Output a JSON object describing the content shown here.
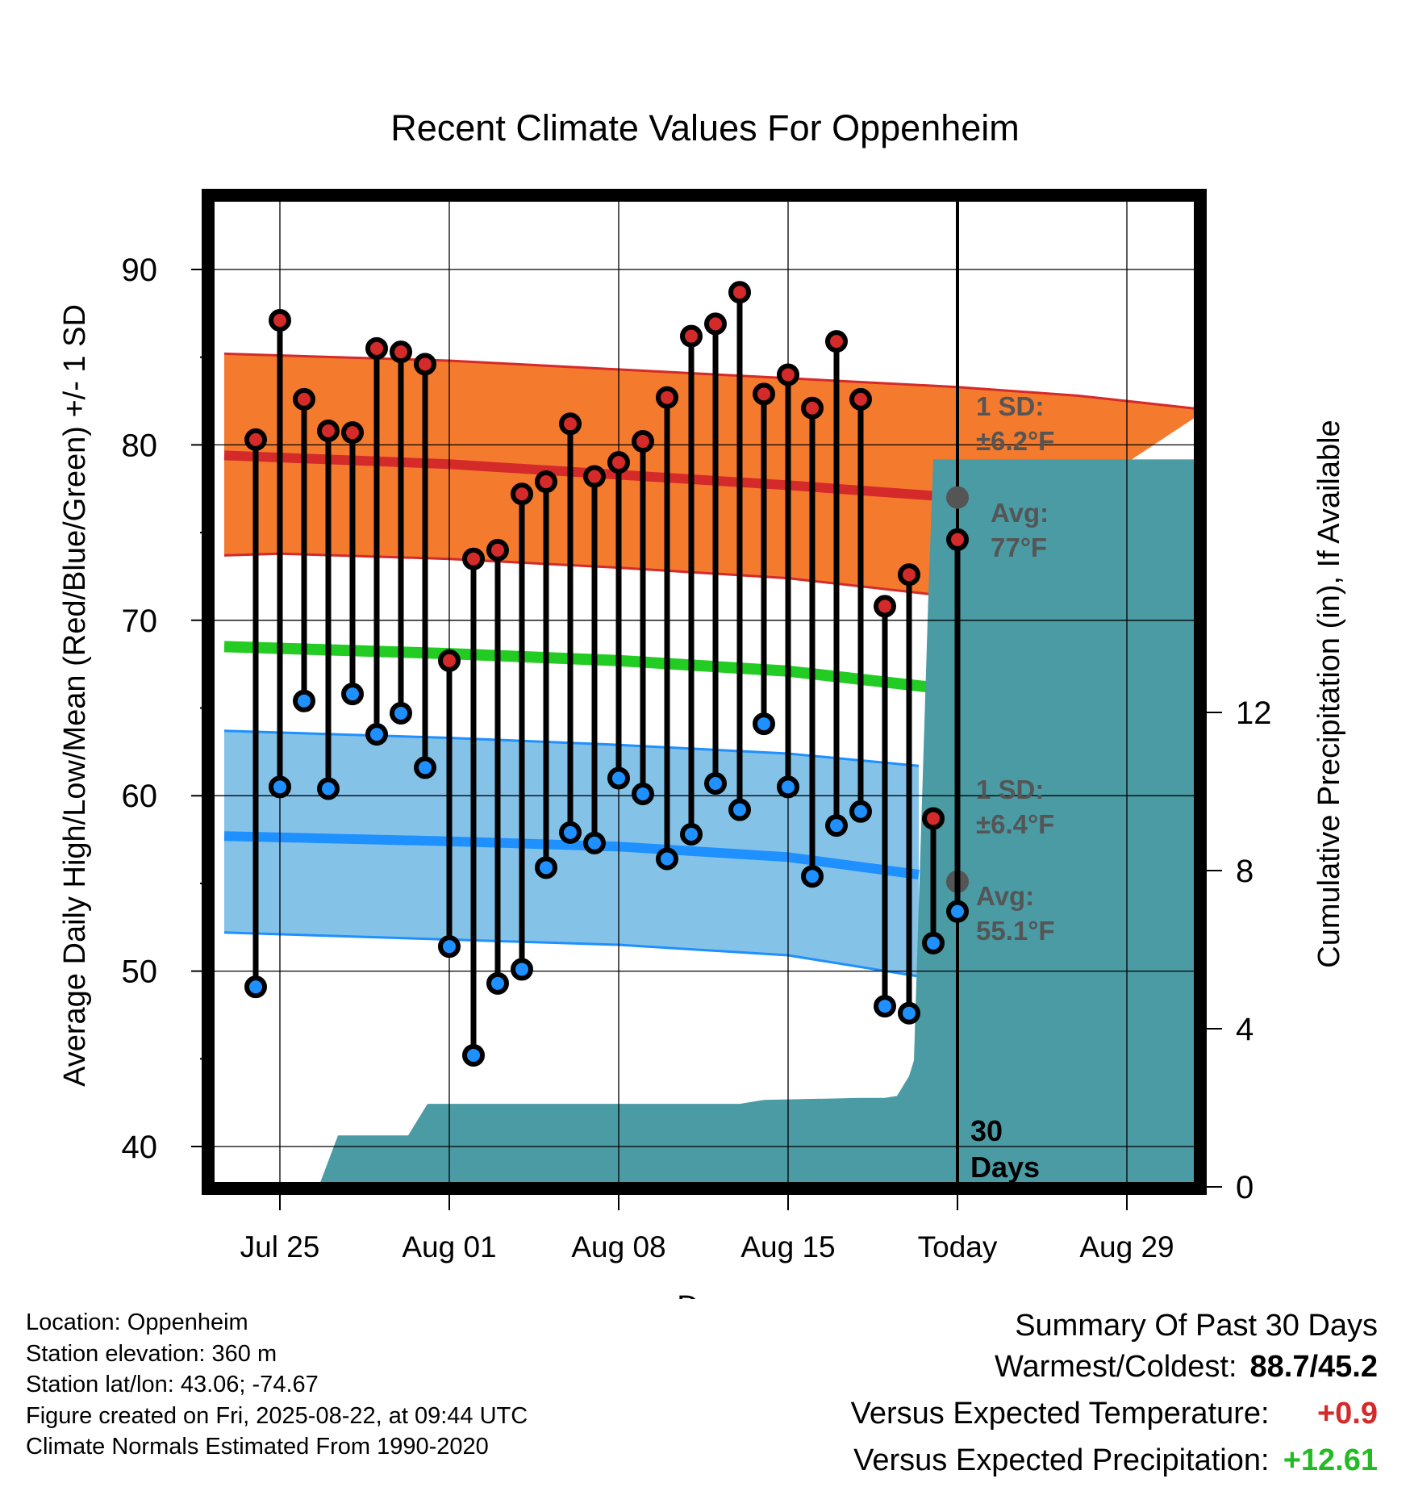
{
  "chart_data": {
    "type": "line",
    "title": "Recent Climate Values For Oppenheim",
    "xlabel": "Day",
    "ylabel": "Average Daily High/Low/Mean (Red/Blue/Green) +/- 1 SD",
    "y2label": "Cumulative Precipitation (in), If Available",
    "ylim": [
      37.5,
      94
    ],
    "y2lim": [
      0,
      21
    ],
    "yticks": [
      40,
      50,
      60,
      70,
      80,
      90
    ],
    "y2ticks": [
      0,
      4,
      8,
      12
    ],
    "x_range_days": [
      -29.6,
      10.2
    ],
    "xticks": [
      {
        "day": -28,
        "label": "Jul 25"
      },
      {
        "day": -21,
        "label": "Aug 01"
      },
      {
        "day": -14,
        "label": "Aug 08"
      },
      {
        "day": -7,
        "label": "Aug 15"
      },
      {
        "day": 0,
        "label": "Today"
      },
      {
        "day": 7,
        "label": "Aug 29"
      }
    ],
    "today_marker": "30\nDays",
    "grid": true,
    "colors": {
      "high_band": "#f47a2e",
      "high_mean": "#d42a2a",
      "low_band": "#85c2e8",
      "low_mean": "#1e90ff",
      "mean_line": "#22cc22",
      "precip": "#4a9ba4",
      "high_marker": "#d42a2a",
      "low_marker": "#1e90ff",
      "avg_marker": "#555555",
      "annotation": "#555555"
    },
    "normals": {
      "high_mean": [
        [
          -30.3,
          79.4
        ],
        [
          -21,
          78.9
        ],
        [
          -14,
          78.3
        ],
        [
          -7,
          77.7
        ],
        [
          0,
          77.0
        ],
        [
          5,
          76.4
        ],
        [
          10.3,
          75.6
        ]
      ],
      "high_upper": [
        [
          -30.3,
          85.2
        ],
        [
          -21,
          84.8
        ],
        [
          -14,
          84.3
        ],
        [
          -7,
          83.8
        ],
        [
          0,
          83.3
        ],
        [
          5,
          82.8
        ],
        [
          10.3,
          82.0
        ]
      ],
      "high_lower": [
        [
          -30.3,
          73.7
        ],
        [
          -28,
          73.8
        ],
        [
          -21,
          73.5
        ],
        [
          -14,
          73.0
        ],
        [
          -7,
          72.4
        ],
        [
          -1.2,
          71.5
        ]
      ],
      "low_mean": [
        [
          -30.3,
          57.7
        ],
        [
          -21,
          57.4
        ],
        [
          -14,
          57.1
        ],
        [
          -7,
          56.5
        ],
        [
          -1.6,
          55.5
        ]
      ],
      "low_upper": [
        [
          -30.3,
          63.7
        ],
        [
          -21,
          63.3
        ],
        [
          -14,
          62.9
        ],
        [
          -7,
          62.4
        ],
        [
          -1.6,
          61.7
        ]
      ],
      "low_lower": [
        [
          -30.3,
          52.2
        ],
        [
          -21,
          51.8
        ],
        [
          -14,
          51.5
        ],
        [
          -7,
          50.9
        ],
        [
          -1.6,
          49.7
        ]
      ],
      "mean": [
        [
          -30.3,
          68.5
        ],
        [
          -21,
          68.1
        ],
        [
          -14,
          67.7
        ],
        [
          -7,
          67.1
        ],
        [
          -1.2,
          66.2
        ]
      ]
    },
    "highs": [
      {
        "day": -29,
        "value": 80.3
      },
      {
        "day": -28,
        "value": 87.1
      },
      {
        "day": -27,
        "value": 82.6
      },
      {
        "day": -26,
        "value": 80.8
      },
      {
        "day": -25,
        "value": 80.7
      },
      {
        "day": -24,
        "value": 85.5
      },
      {
        "day": -23,
        "value": 85.3
      },
      {
        "day": -22,
        "value": 84.6
      },
      {
        "day": -21,
        "value": 67.7
      },
      {
        "day": -20,
        "value": 73.5
      },
      {
        "day": -19,
        "value": 74.0
      },
      {
        "day": -18,
        "value": 77.2
      },
      {
        "day": -17,
        "value": 77.9
      },
      {
        "day": -16,
        "value": 81.2
      },
      {
        "day": -15,
        "value": 78.2
      },
      {
        "day": -14,
        "value": 79.0
      },
      {
        "day": -13,
        "value": 80.2
      },
      {
        "day": -12,
        "value": 82.7
      },
      {
        "day": -11,
        "value": 86.2
      },
      {
        "day": -10,
        "value": 86.9
      },
      {
        "day": -9,
        "value": 88.7
      },
      {
        "day": -8,
        "value": 82.9
      },
      {
        "day": -7,
        "value": 84.0
      },
      {
        "day": -6,
        "value": 82.1
      },
      {
        "day": -5,
        "value": 85.9
      },
      {
        "day": -4,
        "value": 82.6
      },
      {
        "day": -3,
        "value": 70.8
      },
      {
        "day": -2,
        "value": 72.6
      },
      {
        "day": -1,
        "value": 58.7
      },
      {
        "day": 0,
        "value": 74.6
      }
    ],
    "lows": [
      {
        "day": -29,
        "value": 49.1
      },
      {
        "day": -28,
        "value": 60.5
      },
      {
        "day": -27,
        "value": 65.4
      },
      {
        "day": -26,
        "value": 60.4
      },
      {
        "day": -25,
        "value": 65.8
      },
      {
        "day": -24,
        "value": 63.5
      },
      {
        "day": -23,
        "value": 64.7
      },
      {
        "day": -22,
        "value": 61.6
      },
      {
        "day": -21,
        "value": 51.4
      },
      {
        "day": -20,
        "value": 45.2
      },
      {
        "day": -19,
        "value": 49.3
      },
      {
        "day": -18,
        "value": 50.1
      },
      {
        "day": -17,
        "value": 55.9
      },
      {
        "day": -16,
        "value": 57.9
      },
      {
        "day": -15,
        "value": 57.3
      },
      {
        "day": -14,
        "value": 61.0
      },
      {
        "day": -13,
        "value": 60.1
      },
      {
        "day": -12,
        "value": 56.4
      },
      {
        "day": -11,
        "value": 57.8
      },
      {
        "day": -10,
        "value": 60.7
      },
      {
        "day": -9,
        "value": 59.2
      },
      {
        "day": -8,
        "value": 64.1
      },
      {
        "day": -7,
        "value": 60.5
      },
      {
        "day": -6,
        "value": 55.4
      },
      {
        "day": -5,
        "value": 58.3
      },
      {
        "day": -4,
        "value": 59.1
      },
      {
        "day": -3,
        "value": 48.0
      },
      {
        "day": -2,
        "value": 47.6
      },
      {
        "day": -1,
        "value": 51.6
      },
      {
        "day": 0,
        "value": 53.4
      }
    ],
    "precip_cumulative": [
      [
        -30.3,
        0
      ],
      [
        -26.4,
        0
      ],
      [
        -25.6,
        1.3
      ],
      [
        -22.7,
        1.3
      ],
      [
        -21.9,
        2.1
      ],
      [
        -12,
        2.1
      ],
      [
        -10,
        2.1
      ],
      [
        -9,
        2.1
      ],
      [
        -8,
        2.2
      ],
      [
        -4,
        2.25
      ],
      [
        -3,
        2.25
      ],
      [
        -2.5,
        2.3
      ],
      [
        -2,
        2.8
      ],
      [
        -1.8,
        3.2
      ],
      [
        -1.2,
        15
      ],
      [
        -1.0,
        18.4
      ],
      [
        10.3,
        18.4
      ]
    ],
    "annotations": {
      "high_sd_label": "1 SD:",
      "high_sd_value": "±6.2°F",
      "high_avg_label": "Avg:",
      "high_avg_value": "77°F",
      "low_sd_label": "1 SD:",
      "low_sd_value": "±6.4°F",
      "low_avg_label": "Avg:",
      "low_avg_value": "55.1°F",
      "today_high_avg": 77.0,
      "today_low_avg": 55.1
    }
  },
  "station_info": [
    "Location: Oppenheim",
    "Station elevation: 360 m",
    "Station lat/lon: 43.06; -74.67",
    "Figure created on Fri, 2025-08-22, at 09:44 UTC",
    "Climate Normals Estimated From 1990-2020"
  ],
  "summary": {
    "heading": "Summary Of Past 30 Days",
    "warmest_coldest_label": "Warmest/Coldest:",
    "warmest_coldest_value": "88.7/45.2",
    "temp_label": "Versus Expected Temperature:",
    "temp_value": "+0.9",
    "temp_color": "#d42a2a",
    "precip_label": "Versus Expected Precipitation:",
    "precip_value": "+12.61",
    "precip_color": "#22bb22"
  }
}
